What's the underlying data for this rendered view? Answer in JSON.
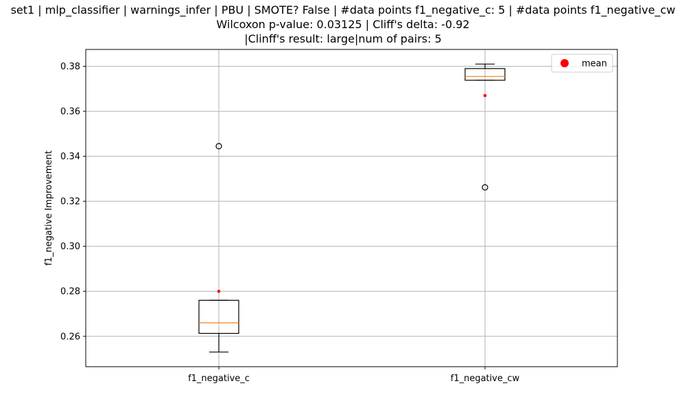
{
  "chart_data": {
    "type": "box",
    "title_lines": [
      "set1 | mlp_classifier | warnings_infer | PBU | SMOTE? False | #data points f1_negative_c: 5 | #data points f1_negative_cw",
      "Wilcoxon p-value: 0.03125 | Cliff's delta: -0.92",
      "|Clinff's result: large|num of pairs: 5"
    ],
    "xlabel": "",
    "ylabel": "f1_negative Improvement",
    "ylim": [
      0.2465,
      0.3875
    ],
    "yticks": [
      0.26,
      0.28,
      0.3,
      0.32,
      0.34,
      0.36,
      0.38
    ],
    "ytick_labels": [
      "0.26",
      "0.28",
      "0.30",
      "0.32",
      "0.34",
      "0.36",
      "0.38"
    ],
    "grid": true,
    "legend": {
      "placement": "top-right",
      "entries": [
        {
          "label": "mean",
          "color": "#ff0000",
          "marker": "circle"
        }
      ]
    },
    "colors": {
      "box": "#000000",
      "median": "#ff7f0e",
      "mean": "#ff0000",
      "grid": "#b0b0b0"
    },
    "categories": [
      "f1_negative_c",
      "f1_negative_cw"
    ],
    "boxes": [
      {
        "name": "f1_negative_c",
        "whisker_low": 0.253,
        "q1": 0.2613,
        "median": 0.266,
        "q3": 0.276,
        "whisker_high": 0.276,
        "mean": 0.28,
        "outliers": [
          0.3445
        ]
      },
      {
        "name": "f1_negative_cw",
        "whisker_low": 0.3738,
        "q1": 0.3738,
        "median": 0.3755,
        "q3": 0.379,
        "whisker_high": 0.381,
        "mean": 0.367,
        "outliers": [
          0.3262
        ]
      }
    ]
  }
}
